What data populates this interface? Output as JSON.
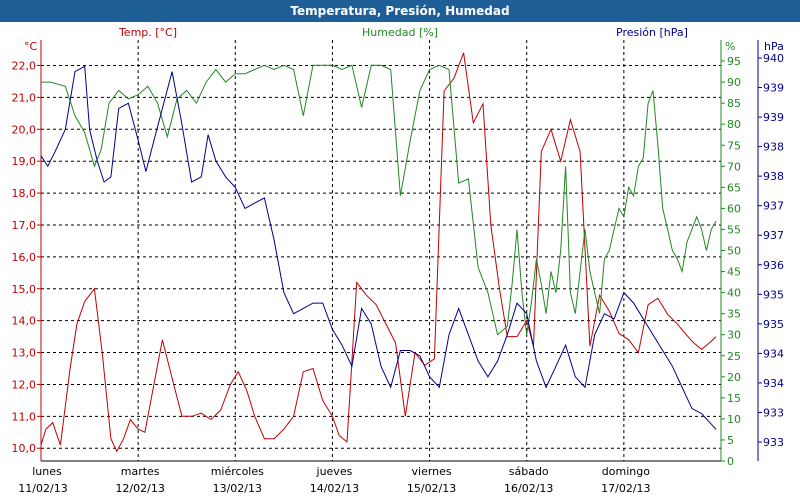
{
  "title": "Temperatura, Presión, Humedad",
  "colors": {
    "temp": "#c00000",
    "hum": "#228822",
    "pres": "#00008b",
    "titlebar": "#1f5f98",
    "grid": "#000000"
  },
  "chart_data": {
    "type": "line",
    "title": "Temperatura, Presión, Humedad",
    "grid": true,
    "x_range": [
      0,
      7
    ],
    "x_ticks": [
      {
        "day": "lunes",
        "date": "11/02/13"
      },
      {
        "day": "martes",
        "date": "12/02/13"
      },
      {
        "day": "miércoles",
        "date": "13/02/13"
      },
      {
        "day": "jueves",
        "date": "14/02/13"
      },
      {
        "day": "viernes",
        "date": "15/02/13"
      },
      {
        "day": "sábado",
        "date": "16/02/13"
      },
      {
        "day": "domingo",
        "date": "17/02/13"
      }
    ],
    "axes": {
      "temp": {
        "label": "Temp. [°C]",
        "unit": "°C",
        "min": 9.6,
        "max": 22.8,
        "ticks": [
          "10,0",
          "11,0",
          "12,0",
          "13,0",
          "14,0",
          "15,0",
          "16,0",
          "17,0",
          "18,0",
          "19,0",
          "20,0",
          "21,0",
          "22,0"
        ]
      },
      "hum": {
        "label": "Humedad [%]",
        "unit": "%",
        "min": 0,
        "max": 100,
        "ticks": [
          "0",
          "5",
          "10",
          "15",
          "20",
          "25",
          "30",
          "35",
          "40",
          "45",
          "50",
          "55",
          "60",
          "65",
          "70",
          "75",
          "80",
          "85",
          "90",
          "95"
        ]
      },
      "pres": {
        "label": "Presión [hPa]",
        "unit": "hPa",
        "min": 932.6,
        "max": 940.6,
        "ticks": [
          "933",
          "933",
          "934",
          "934",
          "935",
          "935",
          "936",
          "937",
          "937",
          "938",
          "938",
          "939",
          "939",
          "940"
        ]
      }
    },
    "series": [
      {
        "name": "Temp. [°C]",
        "axis": "temp",
        "color": "#c00000",
        "x": [
          0,
          0.05,
          0.12,
          0.2,
          0.3,
          0.37,
          0.45,
          0.55,
          0.63,
          0.72,
          0.78,
          0.85,
          0.92,
          1.0,
          1.07,
          1.15,
          1.25,
          1.35,
          1.45,
          1.55,
          1.65,
          1.75,
          1.85,
          1.95,
          2.03,
          2.12,
          2.2,
          2.3,
          2.4,
          2.5,
          2.6,
          2.7,
          2.8,
          2.9,
          3.0,
          3.07,
          3.15,
          3.25,
          3.35,
          3.45,
          3.55,
          3.65,
          3.75,
          3.85,
          3.95,
          4.05,
          4.15,
          4.25,
          4.35,
          4.45,
          4.55,
          4.63,
          4.72,
          4.8,
          4.9,
          5.0,
          5.07,
          5.15,
          5.25,
          5.35,
          5.45,
          5.55,
          5.65,
          5.75,
          5.85,
          5.95,
          6.05,
          6.15,
          6.25,
          6.35,
          6.45,
          6.55,
          6.63,
          6.72,
          6.8,
          6.88,
          6.95
        ],
        "y": [
          10.1,
          10.6,
          10.8,
          10.1,
          12.5,
          13.9,
          14.6,
          15.0,
          13.0,
          10.3,
          9.9,
          10.3,
          10.9,
          10.6,
          10.5,
          11.8,
          13.4,
          12.2,
          11.0,
          11.0,
          11.1,
          10.9,
          11.2,
          12.0,
          12.4,
          11.8,
          11.0,
          10.3,
          10.3,
          10.6,
          11.0,
          12.4,
          12.5,
          11.5,
          11.0,
          10.4,
          10.2,
          15.2,
          14.8,
          14.5,
          13.9,
          13.3,
          11.0,
          13.0,
          12.6,
          12.8,
          21.2,
          21.6,
          22.4,
          20.2,
          20.8,
          17.0,
          15.0,
          13.5,
          13.5,
          14.0,
          13.2,
          19.3,
          20.0,
          19.0,
          20.3,
          19.3,
          13.2,
          14.8,
          14.3,
          13.6,
          13.4,
          13.0,
          14.5,
          14.7,
          14.2,
          13.9,
          13.6,
          13.3,
          13.1,
          13.3,
          13.5
        ]
      },
      {
        "name": "Humedad [%]",
        "axis": "hum",
        "color": "#228822",
        "x": [
          0,
          0.1,
          0.25,
          0.35,
          0.45,
          0.55,
          0.62,
          0.7,
          0.8,
          0.9,
          1.0,
          1.1,
          1.2,
          1.3,
          1.4,
          1.5,
          1.6,
          1.7,
          1.8,
          1.9,
          2.0,
          2.1,
          2.2,
          2.3,
          2.4,
          2.5,
          2.6,
          2.7,
          2.8,
          2.9,
          3.0,
          3.1,
          3.2,
          3.3,
          3.4,
          3.5,
          3.6,
          3.7,
          3.8,
          3.9,
          4.0,
          4.1,
          4.2,
          4.3,
          4.4,
          4.5,
          4.6,
          4.7,
          4.8,
          4.85,
          4.9,
          4.95,
          5.0,
          5.05,
          5.1,
          5.15,
          5.2,
          5.25,
          5.3,
          5.35,
          5.4,
          5.45,
          5.5,
          5.55,
          5.6,
          5.65,
          5.7,
          5.75,
          5.8,
          5.85,
          5.9,
          5.95,
          6.0,
          6.05,
          6.1,
          6.15,
          6.2,
          6.25,
          6.3,
          6.35,
          6.4,
          6.45,
          6.5,
          6.55,
          6.6,
          6.65,
          6.7,
          6.75,
          6.8,
          6.85,
          6.9,
          6.95
        ],
        "y": [
          90,
          90,
          89,
          82,
          78,
          70,
          74,
          85,
          88,
          86,
          87,
          89,
          85,
          77,
          86,
          88,
          85,
          90,
          93,
          90,
          92,
          92,
          93,
          94,
          93,
          94,
          93,
          82,
          94,
          94,
          94,
          93,
          94,
          84,
          94,
          94,
          93,
          63,
          76,
          88,
          93,
          94,
          93,
          66,
          67,
          46,
          40,
          30,
          32,
          42,
          55,
          40,
          30,
          38,
          48,
          42,
          35,
          45,
          40,
          50,
          70,
          40,
          35,
          45,
          55,
          45,
          40,
          35,
          48,
          50,
          55,
          60,
          58,
          65,
          63,
          70,
          72,
          85,
          88,
          75,
          60,
          55,
          50,
          48,
          45,
          52,
          55,
          58,
          55,
          50,
          55,
          57
        ]
      },
      {
        "name": "Presión [hPa]",
        "axis": "pres",
        "color": "#00008b",
        "x": [
          0,
          0.07,
          0.15,
          0.25,
          0.35,
          0.45,
          0.5,
          0.58,
          0.65,
          0.72,
          0.8,
          0.9,
          1.0,
          1.08,
          1.15,
          1.25,
          1.35,
          1.45,
          1.55,
          1.65,
          1.72,
          1.8,
          1.9,
          2.0,
          2.1,
          2.2,
          2.3,
          2.4,
          2.5,
          2.6,
          2.7,
          2.8,
          2.9,
          3.0,
          3.1,
          3.2,
          3.3,
          3.4,
          3.5,
          3.6,
          3.7,
          3.8,
          3.9,
          4.0,
          4.1,
          4.2,
          4.3,
          4.4,
          4.5,
          4.6,
          4.7,
          4.8,
          4.9,
          5.0,
          5.1,
          5.2,
          5.3,
          5.4,
          5.5,
          5.6,
          5.7,
          5.8,
          5.9,
          6.0,
          6.1,
          6.2,
          6.3,
          6.4,
          6.5,
          6.6,
          6.7,
          6.8,
          6.9,
          6.95
        ],
        "y": [
          938.4,
          938.2,
          938.5,
          938.9,
          940.0,
          940.1,
          938.9,
          938.3,
          937.9,
          938.0,
          939.3,
          939.4,
          938.7,
          938.1,
          938.6,
          939.3,
          940.0,
          939.0,
          937.9,
          938.0,
          938.8,
          938.3,
          938.0,
          937.8,
          937.4,
          937.5,
          937.6,
          936.8,
          935.8,
          935.4,
          935.5,
          935.6,
          935.6,
          935.1,
          934.8,
          934.4,
          935.5,
          935.2,
          934.4,
          934.0,
          934.7,
          934.7,
          934.6,
          934.2,
          934.0,
          935.0,
          935.5,
          935.0,
          934.5,
          934.2,
          934.5,
          935.0,
          935.6,
          935.4,
          934.5,
          934.0,
          934.4,
          934.8,
          934.2,
          934.0,
          935.0,
          935.4,
          935.3,
          935.8,
          935.6,
          935.3,
          935.0,
          934.7,
          934.4,
          934.0,
          933.6,
          933.5,
          933.3,
          933.2
        ]
      }
    ]
  }
}
